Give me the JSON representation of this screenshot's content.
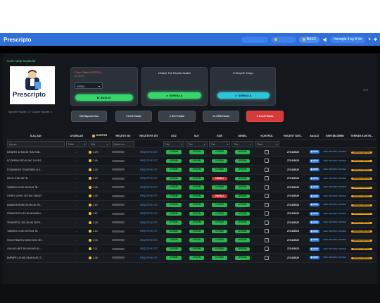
{
  "app": {
    "name": "Prescripto"
  },
  "header": {
    "pill_a": "",
    "pill_b": "",
    "pill_c": "BASC",
    "pill_d": "Hesapla 4 ay 8 ön"
  },
  "panel": {
    "title": "Canlı takip başlatıldı",
    "stats": "İşlenen Reçete: 0 / Toplam Reçete: 0",
    "corner": "0/0/0",
    "card1": {
      "title": "Canlı Takip (SORGU)",
      "subtitle": "Az Seçimi",
      "select": "EKİM",
      "button": "BAŞLAT"
    },
    "card2": {
      "title": "Detaylı Tek Reçete Analizi",
      "button": "SORGULA"
    },
    "card3": {
      "title": "E-Reçete Sorgu",
      "button": "SORGULA"
    },
    "filters": [
      "654 Raporlu İlaç",
      "0 DOZ Hatalı",
      "1 SUT Hatalı",
      "12 KÜB Hatalı",
      "1 Genel Hatalı"
    ]
  },
  "table": {
    "headers": [
      "İLAÇ ADI",
      "UYARILAR",
      "KONTOR",
      "REÇETE NO",
      "REÇETEYE GİT",
      "DOZ",
      "SUT",
      "KÜB",
      "GENEL",
      "KONTROL",
      "REÇETE TARİ...",
      "ANALİZ",
      "GERİ BİLDİRİM",
      "TERRAR KONTR..."
    ],
    "filter_values": {
      "ilac": "İlaç ara...",
      "uyari": "Tümü",
      "kontor": "Mutl",
      "recete": "Reçete no...",
      "doz": "Tüm",
      "sut": "Tüm",
      "kub": "Tüm",
      "genel": "Tüm",
      "kontrol": "Tümü"
    },
    "rows": [
      {
        "drug": "DEMENT 10 MG 28 FILM TAB...",
        "warn": "-",
        "kontor": "3.2%",
        "go": "REÇETEYE GİT",
        "doz": "UYGUN",
        "sut": "UYGUN",
        "kub": "UYGUN",
        "genel": "UYGUN",
        "date": "27/10/2025",
        "analiz": "GÖR",
        "geri": "GERİ BİLDİRİM GÖNDER",
        "terrar": "TERRAR KONTROL"
      },
      {
        "drug": "ECOPIRIN PRO 81 MG 30 ENT...",
        "warn": "-",
        "kontor": "2.49",
        "go": "REÇETEYE GİT",
        "doz": "UYGUN",
        "sut": "UYGUN",
        "kub": "UYGUN",
        "genel": "UYGUN",
        "date": "27/10/2025",
        "analiz": "GÖR",
        "geri": "GERİ BİLDİRİM GÖNDER",
        "terrar": "TERRAR KONTROL"
      },
      {
        "drug": "FOSAVANCE 70 MG/2800 IU 4...",
        "warn": "-",
        "kontor": "3.43",
        "go": "REÇETEYE GİT",
        "doz": "UYGUN",
        "sut": "UYGUN",
        "kub": "UYGUN",
        "genel": "UYGUN",
        "date": "27/10/2025",
        "analiz": "GÖR",
        "geri": "GERİ BİLDİRİM GÖNDER",
        "terrar": "TERRAR KONTROL"
      },
      {
        "drug": "DELIX 5 MG 28 TB.",
        "warn": "-",
        "kontor": "2.23",
        "go": "REÇETEYE GİT",
        "doz": "UYGUN",
        "sut": "UYGUN",
        "kub": "HATALI",
        "genel": "UYGUN",
        "date": "27/10/2025",
        "analiz": "GÖR",
        "geri": "GERİ BİLDİRİM GÖNDER",
        "terrar": "TERRAR KONTROL"
      },
      {
        "drug": "TARDEN 20 MG 30 FILM TB.",
        "warn": "-",
        "kontor": "2.46",
        "go": "REÇETEYE GİT",
        "doz": "UYGUN",
        "sut": "UYGUN",
        "kub": "UYGUN",
        "genel": "UYGUN",
        "date": "27/10/2025",
        "analiz": "GÖR",
        "geri": "GERİ BİLDİRİM GÖNDER",
        "terrar": "TERRAR KONTROL"
      },
      {
        "drug": "GYREX 25 MG 30 FILM TABLET",
        "warn": "-",
        "kontor": "2.45",
        "go": "REÇETEYE GİT",
        "doz": "UYGUN",
        "sut": "UYGUN",
        "kub": "HATALI",
        "genel": "UYGUN",
        "date": "27/10/2025",
        "analiz": "GÖR",
        "geri": "GERİ BİLDİRİM GÖNDER",
        "terrar": "TERRAR KONTROL"
      },
      {
        "drug": "DIAMICRON MR 30 MG 60 TB...",
        "warn": "-",
        "kontor": "2.19",
        "go": "REÇETEYE GİT",
        "doz": "UYGUN",
        "sut": "UYGUN",
        "kub": "UYGUN",
        "genel": "UYGUN",
        "date": "27/10/2025",
        "analiz": "GÖR",
        "geri": "GERİ BİLDİRİM GÖNDER",
        "terrar": "TERRAR KONTROL"
      },
      {
        "drug": "FEMARIS PLUS 150 MG/5600 I...",
        "warn": "-",
        "kontor": "2.57",
        "go": "REÇETEYE GİT",
        "doz": "UYGUN",
        "sut": "UYGUN",
        "kub": "UYGUN",
        "genel": "UYGUN",
        "date": "27/10/2025",
        "analiz": "GÖR",
        "geri": "GERİ BİLDİRİM GÖNDER",
        "terrar": "TERRAR KONTROL"
      },
      {
        "drug": "TENORETIC 100 25 MG 28 FIL...",
        "warn": "-",
        "kontor": "2.28",
        "go": "REÇETEYE GİT",
        "doz": "UYGUN",
        "sut": "UYGUN",
        "kub": "UYGUN",
        "genel": "UYGUN",
        "date": "27/10/2025",
        "analiz": "GÖR",
        "geri": "GERİ BİLDİRİM GÖNDER",
        "terrar": "TERRAR KONTROL"
      },
      {
        "drug": "TARDEN 10 MG 30 FILM TB.",
        "warn": "-",
        "kontor": "2.14",
        "go": "REÇETEYE GİT",
        "doz": "UYGUN",
        "sut": "UYGUN",
        "kub": "UYGUN",
        "genel": "UYGUN",
        "date": "27/10/2025",
        "analiz": "GÖR",
        "geri": "GERİ BİLDİRİM GÖNDER",
        "terrar": "TERRAR KONTROL"
      },
      {
        "drug": "VISCOTEARS 2 MG/G GOZ JEL...",
        "warn": "-",
        "kontor": "2.33",
        "go": "REÇETEYE GİT",
        "doz": "UYGUN",
        "sut": "UYGUN",
        "kub": "UYGUN",
        "genel": "UYGUN",
        "date": "27/10/2025",
        "analiz": "GÖR",
        "geri": "GERİ BİLDİRİM GÖNDER",
        "terrar": "TERRAR KONTROL"
      },
      {
        "drug": "GALVUS MET 50/1000 MG 60 ...",
        "warn": "-",
        "kontor": "3.31",
        "go": "REÇETEYE GİT",
        "doz": "UYGUN",
        "sut": "UYGUN",
        "kub": "UYGUN",
        "genel": "UYGUN",
        "date": "27/10/2025",
        "analiz": "GÖR",
        "geri": "GERİ BİLDİRİM GÖNDER",
        "terrar": "TERRAR KONTROL"
      },
      {
        "drug": "EMPAFEL 25 MG FILM KAPLI T...",
        "warn": "-",
        "kontor": "2.46",
        "go": "REÇETEYE GİT",
        "doz": "UYGUN",
        "sut": "UYGUN",
        "kub": "UYGUN",
        "genel": "UYGUN",
        "date": "27/10/2025",
        "analiz": "GÖR",
        "geri": "GERİ BİLDİRİM GÖNDER",
        "terrar": "TERRAR KONTROL"
      }
    ]
  }
}
